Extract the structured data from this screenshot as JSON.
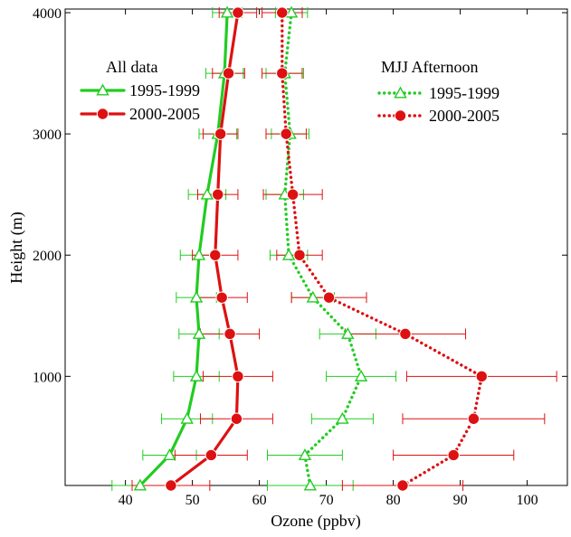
{
  "chart_data": {
    "type": "line",
    "orientation": "profile (x = value, y = height)",
    "xlabel": "Ozone (ppbv)",
    "ylabel": "Height (m)",
    "xlim": [
      31,
      106
    ],
    "ylim": [
      100,
      4030
    ],
    "xticks": [
      40,
      50,
      60,
      70,
      80,
      90,
      100
    ],
    "yticks": [
      1000,
      2000,
      3000,
      4000
    ],
    "xtick_labels": [
      "40",
      "50",
      "60",
      "70",
      "80",
      "90",
      "100"
    ],
    "ytick_labels": [
      "1000",
      "2000",
      "3000",
      "4000"
    ],
    "grid": false,
    "legend": [
      {
        "heading": "All data",
        "position": "top-left",
        "entries": [
          {
            "label": "1995-1999",
            "series": "all_1995_1999"
          },
          {
            "label": "2000-2005",
            "series": "all_2000_2005"
          }
        ]
      },
      {
        "heading": "MJJ Afternoon",
        "position": "top-right",
        "entries": [
          {
            "label": "1995-1999",
            "series": "mjj_1995_1999"
          },
          {
            "label": "2000-2005",
            "series": "mjj_2000_2005"
          }
        ]
      }
    ],
    "series": [
      {
        "id": "all_1995_1999",
        "color": "#22cc22",
        "line": "solid",
        "marker": "open-triangle",
        "points": [
          {
            "height": 100,
            "ozone": 42.2,
            "err_lo": 38.0,
            "err_hi": 46.4
          },
          {
            "height": 350,
            "ozone": 46.6,
            "err_lo": 42.6,
            "err_hi": 50.6
          },
          {
            "height": 650,
            "ozone": 49.2,
            "err_lo": 45.4,
            "err_hi": 53.0
          },
          {
            "height": 1000,
            "ozone": 50.6,
            "err_lo": 47.2,
            "err_hi": 54.0
          },
          {
            "height": 1350,
            "ozone": 51.0,
            "err_lo": 48.0,
            "err_hi": 54.0
          },
          {
            "height": 1650,
            "ozone": 50.6,
            "err_lo": 47.6,
            "err_hi": 53.6
          },
          {
            "height": 2000,
            "ozone": 51.0,
            "err_lo": 48.2,
            "err_hi": 53.8
          },
          {
            "height": 2500,
            "ozone": 52.2,
            "err_lo": 49.4,
            "err_hi": 55.0
          },
          {
            "height": 3000,
            "ozone": 53.8,
            "err_lo": 51.0,
            "err_hi": 56.6
          },
          {
            "height": 3500,
            "ozone": 54.8,
            "err_lo": 52.0,
            "err_hi": 57.6
          },
          {
            "height": 4000,
            "ozone": 55.2,
            "err_lo": 53.0,
            "err_hi": 57.4
          }
        ]
      },
      {
        "id": "all_2000_2005",
        "color": "#dd1111",
        "line": "solid",
        "marker": "filled-circle",
        "points": [
          {
            "height": 100,
            "ozone": 46.8,
            "err_lo": 41.0,
            "err_hi": 52.6
          },
          {
            "height": 350,
            "ozone": 52.8,
            "err_lo": 47.4,
            "err_hi": 58.2
          },
          {
            "height": 650,
            "ozone": 56.6,
            "err_lo": 51.2,
            "err_hi": 62.0
          },
          {
            "height": 1000,
            "ozone": 56.8,
            "err_lo": 51.6,
            "err_hi": 62.0
          },
          {
            "height": 1350,
            "ozone": 55.6,
            "err_lo": 51.2,
            "err_hi": 60.0
          },
          {
            "height": 1650,
            "ozone": 54.4,
            "err_lo": 50.6,
            "err_hi": 58.2
          },
          {
            "height": 2000,
            "ozone": 53.4,
            "err_lo": 50.0,
            "err_hi": 56.8
          },
          {
            "height": 2500,
            "ozone": 53.8,
            "err_lo": 50.8,
            "err_hi": 56.8
          },
          {
            "height": 3000,
            "ozone": 54.2,
            "err_lo": 51.6,
            "err_hi": 56.8
          },
          {
            "height": 3500,
            "ozone": 55.4,
            "err_lo": 53.0,
            "err_hi": 57.8
          },
          {
            "height": 4000,
            "ozone": 56.8,
            "err_lo": 54.0,
            "err_hi": 59.6
          }
        ]
      },
      {
        "id": "mjj_1995_1999",
        "color": "#22cc22",
        "line": "dotted",
        "marker": "open-triangle",
        "points": [
          {
            "height": 100,
            "ozone": 67.6,
            "err_lo": 61.2,
            "err_hi": 74.0
          },
          {
            "height": 350,
            "ozone": 66.8,
            "err_lo": 61.2,
            "err_hi": 72.4
          },
          {
            "height": 650,
            "ozone": 72.4,
            "err_lo": 67.8,
            "err_hi": 77.0
          },
          {
            "height": 1000,
            "ozone": 75.2,
            "err_lo": 70.0,
            "err_hi": 80.4
          },
          {
            "height": 1350,
            "ozone": 73.2,
            "err_lo": 69.0,
            "err_hi": 77.4
          },
          {
            "height": 1650,
            "ozone": 68.0,
            "err_lo": 64.8,
            "err_hi": 71.2
          },
          {
            "height": 2000,
            "ozone": 64.4,
            "err_lo": 61.6,
            "err_hi": 67.2
          },
          {
            "height": 2500,
            "ozone": 63.8,
            "err_lo": 61.0,
            "err_hi": 66.6
          },
          {
            "height": 3000,
            "ozone": 64.6,
            "err_lo": 61.8,
            "err_hi": 67.4
          },
          {
            "height": 3500,
            "ozone": 63.8,
            "err_lo": 61.0,
            "err_hi": 66.6
          },
          {
            "height": 4000,
            "ozone": 64.8,
            "err_lo": 62.4,
            "err_hi": 67.2
          }
        ]
      },
      {
        "id": "mjj_2000_2005",
        "color": "#dd1111",
        "line": "dotted",
        "marker": "filled-circle",
        "points": [
          {
            "height": 100,
            "ozone": 81.4,
            "err_lo": 72.4,
            "err_hi": 90.4
          },
          {
            "height": 350,
            "ozone": 89.0,
            "err_lo": 80.0,
            "err_hi": 98.0
          },
          {
            "height": 650,
            "ozone": 92.0,
            "err_lo": 81.4,
            "err_hi": 102.6
          },
          {
            "height": 1000,
            "ozone": 93.2,
            "err_lo": 82.0,
            "err_hi": 104.4
          },
          {
            "height": 1350,
            "ozone": 81.8,
            "err_lo": 72.8,
            "err_hi": 90.8
          },
          {
            "height": 1650,
            "ozone": 70.4,
            "err_lo": 64.8,
            "err_hi": 76.0
          },
          {
            "height": 2000,
            "ozone": 66.0,
            "err_lo": 62.6,
            "err_hi": 69.4
          },
          {
            "height": 2500,
            "ozone": 65.0,
            "err_lo": 60.6,
            "err_hi": 69.4
          },
          {
            "height": 3000,
            "ozone": 64.0,
            "err_lo": 61.0,
            "err_hi": 67.0
          },
          {
            "height": 3500,
            "ozone": 63.4,
            "err_lo": 60.4,
            "err_hi": 66.4
          },
          {
            "height": 4000,
            "ozone": 63.4,
            "err_lo": 60.4,
            "err_hi": 66.4
          }
        ]
      }
    ]
  }
}
